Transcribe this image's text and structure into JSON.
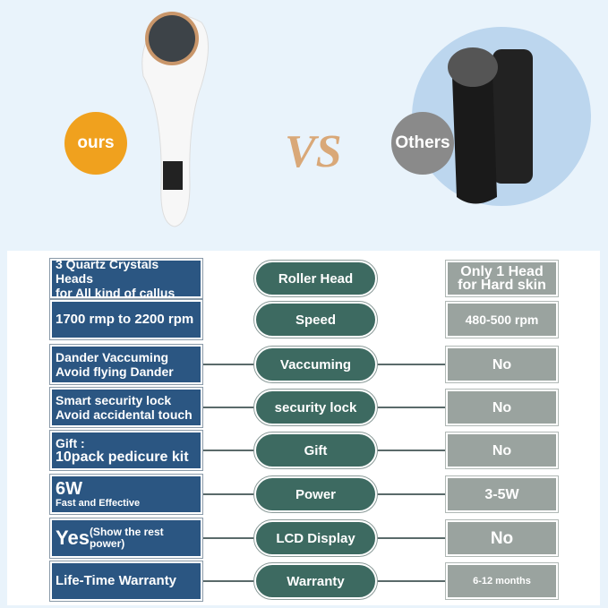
{
  "top": {
    "ours_label": "ours",
    "vs_label": "VS",
    "others_label": "Others",
    "colors": {
      "ours": "#f0a11e",
      "others": "#8a8a8a",
      "vs": "#d9a878"
    }
  },
  "rows": [
    {
      "ours": [
        "3 Quartz Crystals Heads",
        "for All kind of callus"
      ],
      "feature": "Roller Head",
      "others": [
        "Only 1 Head",
        "for Hard skin"
      ]
    },
    {
      "ours": [
        "1700 rmp to 2200 rpm"
      ],
      "feature": "Speed",
      "others": [
        "480-500 rpm"
      ]
    },
    {
      "ours": [
        "Dander Vaccuming",
        "Avoid flying Dander"
      ],
      "feature": "Vaccuming",
      "others": [
        "No"
      ]
    },
    {
      "ours": [
        "Smart security lock",
        "Avoid accidental touch"
      ],
      "feature": "security lock",
      "others": [
        "No"
      ]
    },
    {
      "ours": [
        "Gift :",
        "10pack pedicure kit"
      ],
      "feature": "Gift",
      "others": [
        "No"
      ]
    },
    {
      "ours": [
        "6W",
        "Fast and Effective"
      ],
      "feature": "Power",
      "others": [
        "3-5W"
      ]
    },
    {
      "ours": [
        "Yes",
        "(Show the rest",
        "power)"
      ],
      "feature": "LCD Display",
      "others": [
        "No"
      ]
    },
    {
      "ours": [
        "Life-Time Warranty"
      ],
      "feature": "Warranty",
      "others": [
        "6-12 months"
      ]
    }
  ],
  "colors": {
    "ours_box": "#2b5682",
    "feature_pill": "#3d6a61",
    "others_box": "#9aa39f"
  }
}
